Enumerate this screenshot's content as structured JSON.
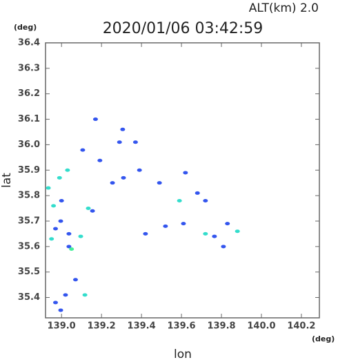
{
  "chart_data": {
    "type": "scatter",
    "title": "2020/01/06 03:42:59",
    "altitude_label": "ALT(km)  2.0",
    "y_unit": "(deg)",
    "x_unit": "(deg)",
    "x_label": "lon",
    "y_label": "lat",
    "xlim": [
      138.92,
      140.29
    ],
    "ylim": [
      35.32,
      36.4
    ],
    "xticks": [
      {
        "value": 139,
        "label": "139.0"
      },
      139.2,
      139.4,
      139.6,
      139.8,
      {
        "value": 140,
        "label": "140.0"
      },
      140.2
    ],
    "yticks": [
      35.4,
      35.5,
      35.6,
      35.7,
      35.8,
      35.9,
      {
        "value": 36,
        "label": "36.0"
      },
      36.1,
      36.2,
      36.3,
      36.4
    ],
    "x": [
      139.17,
      139.106,
      139.192,
      139.03,
      138.99,
      138.934,
      138.96,
      139.0,
      138.97,
      139.037,
      138.95,
      139.037,
      139.05,
      139.096,
      139.134,
      139.155,
      139.39,
      139.42,
      139.49,
      139.62,
      139.59,
      139.72,
      139.765,
      139.83,
      139.88,
      139.81,
      139.07,
      139.02,
      138.97,
      138.996,
      139.117,
      139.306,
      139.29,
      139.37,
      139.31,
      139.255,
      139.68,
      139.72,
      139.61,
      139.52,
      138.996
    ],
    "values": [
      36.1,
      35.979,
      35.938,
      35.9,
      35.87,
      35.83,
      35.76,
      35.78,
      35.67,
      35.65,
      35.63,
      35.6,
      35.59,
      35.64,
      35.75,
      35.74,
      35.9,
      35.65,
      35.85,
      35.89,
      35.78,
      35.65,
      35.64,
      35.69,
      35.66,
      35.6,
      35.47,
      35.41,
      35.38,
      35.35,
      35.41,
      36.06,
      36.01,
      36.01,
      35.87,
      35.85,
      35.81,
      35.78,
      35.69,
      35.68,
      35.7
    ],
    "colors": [
      "#3355ee",
      "#3355ee",
      "#3355ee",
      "#33ddcc",
      "#33ddcc",
      "#33ddcc",
      "#33ddcc",
      "#3355ee",
      "#3355ee",
      "#3355ee",
      "#33ddcc",
      "#3355ee",
      "#44ee99",
      "#33ddcc",
      "#33ddcc",
      "#3355ee",
      "#3355ee",
      "#3355ee",
      "#3355ee",
      "#3355ee",
      "#33ddcc",
      "#33ddcc",
      "#3355ee",
      "#3355ee",
      "#33ddcc",
      "#3355ee",
      "#3355ee",
      "#3355ee",
      "#3355ee",
      "#3355ee",
      "#33ddcc",
      "#3355ee",
      "#3355ee",
      "#3355ee",
      "#3355ee",
      "#3355ee",
      "#3355ee",
      "#3355ee",
      "#3355ee",
      "#3355ee",
      "#3355ee"
    ]
  }
}
